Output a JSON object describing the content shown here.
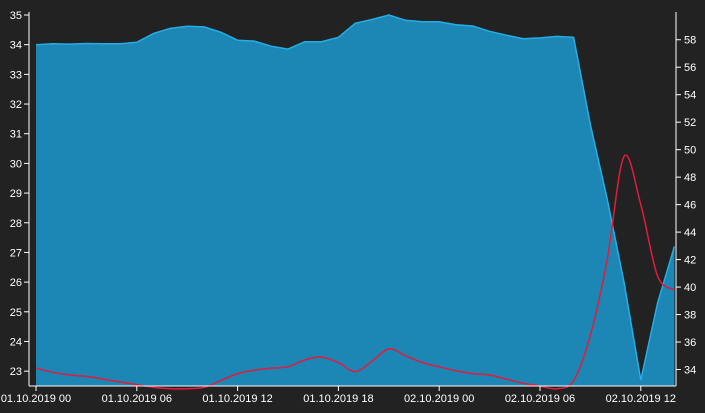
{
  "chart_data": {
    "type": "area",
    "x_labels": [
      "01.10.2019 00",
      "01.10.2019 06",
      "01.10.2019 12",
      "01.10.2019 18",
      "02.10.2019 00",
      "02.10.2019 06",
      "02.10.2019 12"
    ],
    "x_hours": [
      0,
      6,
      12,
      18,
      24,
      30,
      36
    ],
    "y_left": {
      "ticks": [
        23,
        24,
        25,
        26,
        27,
        28,
        29,
        30,
        31,
        32,
        33,
        34,
        35
      ],
      "range": [
        22.5,
        35
      ]
    },
    "y_right": {
      "ticks": [
        34,
        36,
        38,
        40,
        42,
        44,
        46,
        48,
        50,
        52,
        54,
        56,
        58
      ],
      "range": [
        32.8,
        59.8
      ]
    },
    "series": [
      {
        "type": "area",
        "axis": "left",
        "color": "#1c86b4",
        "stroke": "#25aee6",
        "x": [
          0,
          1,
          2,
          3,
          4,
          5,
          6,
          7,
          8,
          9,
          10,
          11,
          12,
          13,
          14,
          15,
          16,
          17,
          18,
          19,
          20,
          21,
          22,
          23,
          24,
          25,
          26,
          27,
          28,
          29,
          30,
          31,
          32,
          33,
          34,
          35,
          36,
          37,
          38
        ],
        "values": [
          34.0,
          34.03,
          34.02,
          34.04,
          34.03,
          34.03,
          34.08,
          34.38,
          34.55,
          34.62,
          34.6,
          34.42,
          34.15,
          34.12,
          33.95,
          33.85,
          34.1,
          34.1,
          34.25,
          34.72,
          34.85,
          35.0,
          34.82,
          34.77,
          34.77,
          34.67,
          34.63,
          34.45,
          34.32,
          34.2,
          34.23,
          34.28,
          34.25,
          31.3,
          28.8,
          26.0,
          22.7,
          25.3,
          27.2
        ]
      },
      {
        "type": "line",
        "axis": "right",
        "color": "#e31b3c",
        "x": [
          0,
          1,
          2,
          3,
          4,
          5,
          6,
          7,
          8,
          9,
          10,
          11,
          12,
          13,
          14,
          15,
          16,
          17,
          18,
          19,
          20,
          21,
          22,
          23,
          24,
          25,
          26,
          27,
          28,
          29,
          30,
          31,
          32,
          33,
          34,
          35,
          36,
          37,
          38
        ],
        "values": [
          34.1,
          33.8,
          33.6,
          33.5,
          33.3,
          33.1,
          32.9,
          32.7,
          32.6,
          32.6,
          32.7,
          33.2,
          33.7,
          33.95,
          34.1,
          34.2,
          34.7,
          34.9,
          34.5,
          33.85,
          34.6,
          35.5,
          35.0,
          34.5,
          34.2,
          33.9,
          33.7,
          33.6,
          33.3,
          33.0,
          32.8,
          32.6,
          33.2,
          36.5,
          42.0,
          49.5,
          46.0,
          40.8,
          39.8
        ]
      }
    ]
  }
}
